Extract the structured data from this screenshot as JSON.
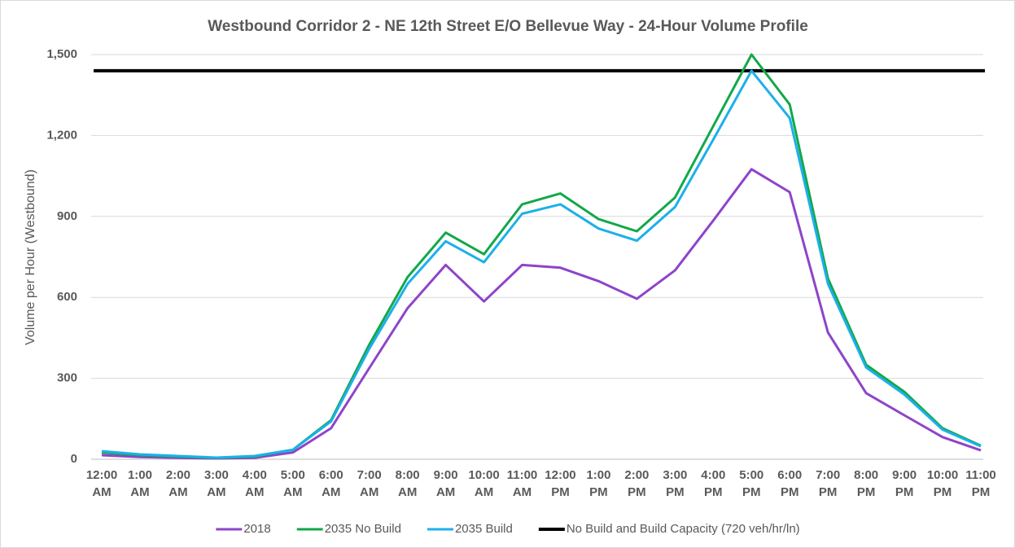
{
  "chart_data": {
    "type": "line",
    "title": "Westbound Corridor 2 - NE 12th Street E/O Bellevue Way - 24-Hour Volume Profile",
    "y_label": "Volume per Hour (Westbound)",
    "categories": [
      "12:00 AM",
      "1:00 AM",
      "2:00 AM",
      "3:00 AM",
      "4:00 AM",
      "5:00 AM",
      "6:00 AM",
      "7:00 AM",
      "8:00 AM",
      "9:00 AM",
      "10:00 AM",
      "11:00 AM",
      "12:00 PM",
      "1:00 PM",
      "2:00 PM",
      "3:00 PM",
      "4:00 PM",
      "5:00 PM",
      "6:00 PM",
      "7:00 PM",
      "8:00 PM",
      "9:00 PM",
      "10:00 PM",
      "11:00 PM"
    ],
    "series": [
      {
        "name": "2018",
        "color": "#8e44c9",
        "values": [
          15,
          8,
          5,
          3,
          5,
          25,
          115,
          338,
          560,
          720,
          585,
          720,
          710,
          660,
          595,
          700,
          885,
          1075,
          990,
          470,
          245,
          163,
          82,
          33
        ]
      },
      {
        "name": "2035 No Build",
        "color": "#12a84a",
        "values": [
          25,
          15,
          10,
          5,
          10,
          35,
          145,
          425,
          675,
          840,
          760,
          945,
          985,
          890,
          845,
          970,
          1235,
          1500,
          1315,
          670,
          350,
          250,
          115,
          50
        ]
      },
      {
        "name": "2035 Build",
        "color": "#1cb0ea",
        "values": [
          30,
          18,
          12,
          6,
          12,
          35,
          140,
          410,
          650,
          808,
          730,
          910,
          945,
          855,
          810,
          935,
          1185,
          1440,
          1265,
          650,
          340,
          240,
          110,
          48
        ]
      }
    ],
    "reference_line": {
      "name": "No Build and Build Capacity (720 veh/hr/ln)",
      "value": 1440,
      "color": "#000000"
    },
    "ylim": [
      0,
      1500
    ],
    "yticks": [
      0,
      300,
      600,
      900,
      {
        "value": 1200,
        "label": "1,200"
      },
      {
        "value": 1500,
        "label": "1,500"
      }
    ],
    "grid": true,
    "legend": "bottom"
  }
}
